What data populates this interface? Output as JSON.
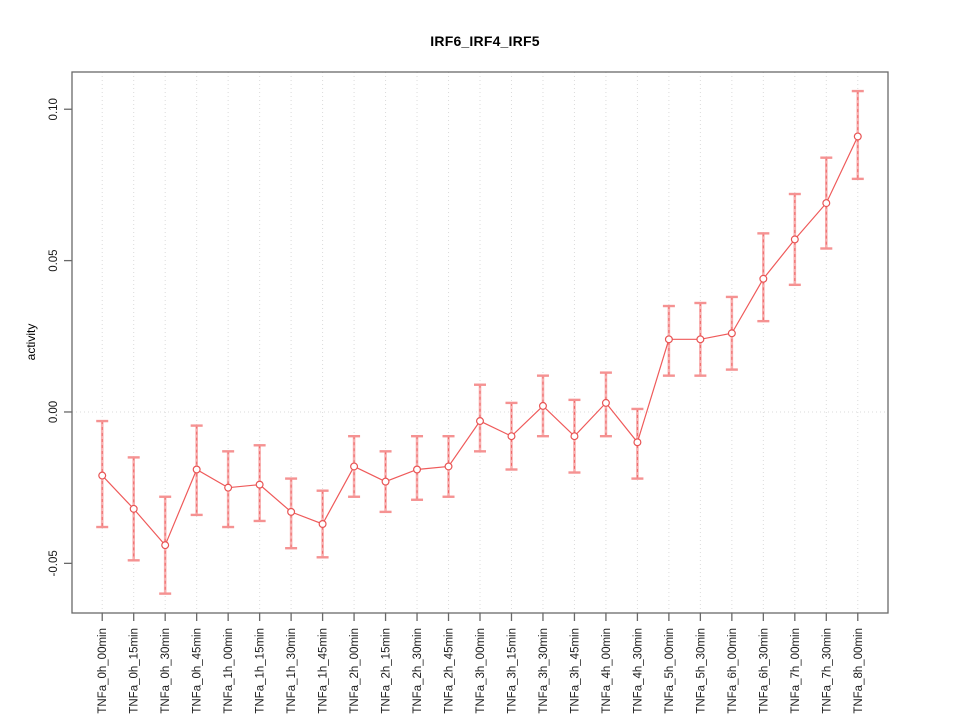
{
  "page": {
    "background": "#ffffff"
  },
  "chart_data": {
    "type": "line",
    "title": "IRF6_IRF4_IRF5",
    "xlabel": "",
    "ylabel": "activity",
    "legend_position": "none",
    "grid": {
      "vertical_dotted_per_category": true,
      "horizontal_dotted_at_zero": true
    },
    "ylim": [
      -0.0664,
      0.1123
    ],
    "yticks": [
      -0.05,
      0.0,
      0.05,
      0.1
    ],
    "ytick_labels": [
      "-0.05",
      "0.00",
      "0.05",
      "0.10"
    ],
    "categories": [
      "TNFa_0h_00min",
      "TNFa_0h_15min",
      "TNFa_0h_30min",
      "TNFa_0h_45min",
      "TNFa_1h_00min",
      "TNFa_1h_15min",
      "TNFa_1h_30min",
      "TNFa_1h_45min",
      "TNFa_2h_00min",
      "TNFa_2h_15min",
      "TNFa_2h_30min",
      "TNFa_2h_45min",
      "TNFa_3h_00min",
      "TNFa_3h_15min",
      "TNFa_3h_30min",
      "TNFa_3h_45min",
      "TNFa_4h_00min",
      "TNFa_4h_30min",
      "TNFa_5h_00min",
      "TNFa_5h_30min",
      "TNFa_6h_00min",
      "TNFa_6h_30min",
      "TNFa_7h_00min",
      "TNFa_7h_30min",
      "TNFa_8h_00min"
    ],
    "series": [
      {
        "name": "IRF6_IRF4_IRF5",
        "marker": "open-circle",
        "values": [
          -0.021,
          -0.032,
          -0.044,
          -0.019,
          -0.025,
          -0.024,
          -0.033,
          -0.037,
          -0.018,
          -0.023,
          -0.019,
          -0.018,
          -0.003,
          -0.008,
          0.002,
          -0.008,
          0.003,
          -0.01,
          0.024,
          0.024,
          0.026,
          0.044,
          0.057,
          0.069,
          0.091
        ],
        "error_high": [
          -0.003,
          -0.015,
          -0.028,
          -0.0045,
          -0.013,
          -0.011,
          -0.022,
          -0.026,
          -0.008,
          -0.013,
          -0.008,
          -0.008,
          0.009,
          0.003,
          0.012,
          0.004,
          0.013,
          0.001,
          0.035,
          0.036,
          0.038,
          0.059,
          0.072,
          0.084,
          0.106
        ],
        "error_low": [
          -0.038,
          -0.049,
          -0.06,
          -0.034,
          -0.038,
          -0.036,
          -0.045,
          -0.048,
          -0.028,
          -0.033,
          -0.029,
          -0.028,
          -0.013,
          -0.019,
          -0.008,
          -0.02,
          -0.008,
          -0.022,
          0.012,
          0.012,
          0.014,
          0.03,
          0.042,
          0.054,
          0.077
        ]
      }
    ],
    "colors": {
      "series_line": "#EF5A5A",
      "marker_stroke": "#E85454",
      "error_bar_underlay": "#F8A8A8",
      "error_bar_dash": "#EE6060",
      "error_bar_cap": "#F59292",
      "gridline": "#DBDBDB",
      "axis_box": "#696969",
      "tick_text": "#1A1A1A",
      "background": "#FFFFFF"
    }
  }
}
